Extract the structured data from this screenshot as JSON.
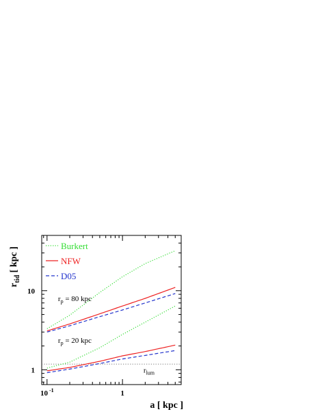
{
  "chart_data": {
    "type": "line",
    "xscale": "log",
    "yscale": "log",
    "xlim": [
      0.085,
      6.0
    ],
    "ylim": [
      0.65,
      50
    ],
    "xlabel": "a [ kpc ]",
    "ylabel": "r_tid [ kpc ]",
    "xticks": [
      {
        "value": 0.1,
        "label": "10",
        "sup": "-1"
      },
      {
        "value": 1,
        "label": "1",
        "sup": ""
      }
    ],
    "yticks": [
      {
        "value": 1,
        "label": "1"
      },
      {
        "value": 10,
        "label": "10"
      }
    ],
    "legend_position": "top-left",
    "legend": [
      {
        "name": "Burkert",
        "color": "#33dd33",
        "dash": "dotted"
      },
      {
        "name": "NFW",
        "color": "#ee2222",
        "dash": "solid"
      },
      {
        "name": "D05",
        "color": "#2233cc",
        "dash": "dashed"
      }
    ],
    "series": [
      {
        "name": "Burkert",
        "group": "rp80",
        "color": "#33dd33",
        "dash": "dotted",
        "x": [
          0.1,
          0.2,
          0.5,
          1,
          2,
          5
        ],
        "y": [
          3.3,
          4.9,
          9.5,
          15,
          22,
          32
        ]
      },
      {
        "name": "NFW",
        "group": "rp80",
        "color": "#ee2222",
        "dash": "solid",
        "x": [
          0.1,
          0.2,
          0.5,
          1,
          2,
          5
        ],
        "y": [
          3.1,
          3.8,
          5.1,
          6.4,
          8.0,
          11
        ]
      },
      {
        "name": "D05",
        "group": "rp80",
        "color": "#2233cc",
        "dash": "dashed",
        "x": [
          0.1,
          0.2,
          0.5,
          1,
          2,
          5
        ],
        "y": [
          3.0,
          3.6,
          4.7,
          5.7,
          7.0,
          9.2
        ]
      },
      {
        "name": "Burkert",
        "group": "rp20",
        "color": "#33dd33",
        "dash": "dotted",
        "x": [
          0.1,
          0.2,
          0.5,
          1,
          2,
          5
        ],
        "y": [
          1.05,
          1.25,
          1.9,
          2.8,
          4.0,
          6.4
        ]
      },
      {
        "name": "NFW",
        "group": "rp20",
        "color": "#ee2222",
        "dash": "solid",
        "x": [
          0.1,
          0.2,
          0.5,
          1,
          2,
          5
        ],
        "y": [
          0.97,
          1.07,
          1.28,
          1.5,
          1.7,
          2.05
        ]
      },
      {
        "name": "D05",
        "group": "rp20",
        "color": "#2233cc",
        "dash": "dashed",
        "x": [
          0.1,
          0.2,
          0.5,
          1,
          2,
          5
        ],
        "y": [
          0.92,
          1.02,
          1.2,
          1.37,
          1.52,
          1.75
        ]
      }
    ],
    "reference_lines": [
      {
        "label": "r_lum",
        "y": 1.18,
        "color": "#777777",
        "dash": "dotted"
      }
    ],
    "annotations": [
      {
        "text": "r",
        "sub": "p",
        "rest": " = 80 kpc",
        "x": 0.14,
        "y": 7.4
      },
      {
        "text": "r",
        "sub": "p",
        "rest": " = 20 kpc",
        "x": 0.14,
        "y": 2.2
      },
      {
        "text": "r",
        "sub": "lum",
        "rest": "",
        "x": 1.9,
        "y": 0.92
      }
    ]
  }
}
